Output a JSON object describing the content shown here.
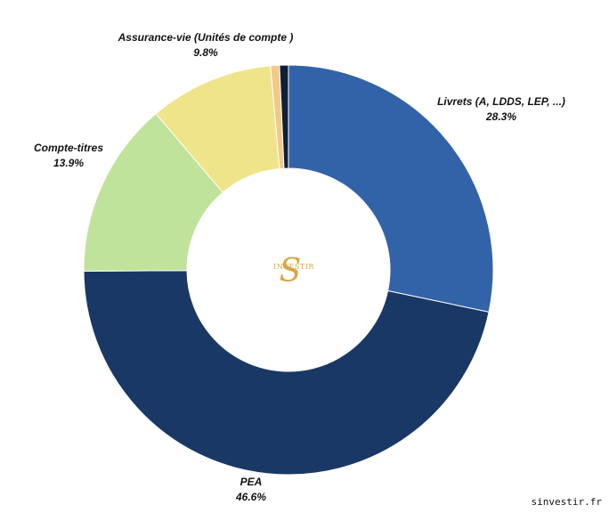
{
  "chart_data": {
    "type": "pie",
    "donut": true,
    "start_angle_deg": 0,
    "direction": "clockwise",
    "title": "",
    "slices": [
      {
        "label": "Livrets (A, LDDS, LEP, ...)",
        "value": 28.3,
        "percent_label": "28.3%",
        "color": "#3263a8"
      },
      {
        "label": "PEA",
        "value": 46.6,
        "percent_label": "46.6%",
        "color": "#1a3866"
      },
      {
        "label": "Compte-titres",
        "value": 13.9,
        "percent_label": "13.9%",
        "color": "#bfe39a"
      },
      {
        "label": "Assurance-vie (Unités de compte )",
        "value": 9.8,
        "percent_label": "9.8%",
        "color": "#f0e48a"
      },
      {
        "label": "",
        "value": 0.7,
        "percent_label": "",
        "color": "#f2c98a"
      },
      {
        "label": "",
        "value": 0.7,
        "percent_label": "",
        "color": "#0f1f36"
      }
    ],
    "legend": "none"
  },
  "logo": {
    "letter": "S",
    "word": "INVESTIR",
    "color": "#d9a441"
  },
  "footer": {
    "credit": "sinvestir.fr"
  }
}
